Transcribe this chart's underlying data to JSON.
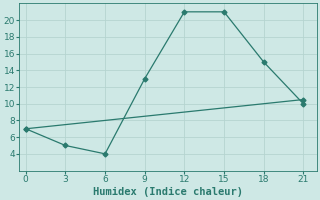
{
  "xlabel": "Humidex (Indice chaleur)",
  "line1_x": [
    0,
    3,
    6,
    9,
    12,
    15,
    18,
    21
  ],
  "line1_y": [
    7,
    5,
    4,
    13,
    21,
    21,
    15,
    10
  ],
  "line2_x": [
    0,
    21
  ],
  "line2_y": [
    7,
    10.5
  ],
  "line_color": "#2a7a6e",
  "bg_color": "#cee8e5",
  "grid_color": "#b5d4d0",
  "xlim": [
    -0.5,
    22
  ],
  "ylim": [
    2,
    22
  ],
  "xticks": [
    0,
    3,
    6,
    9,
    12,
    15,
    18,
    21
  ],
  "yticks": [
    4,
    6,
    8,
    10,
    12,
    14,
    16,
    18,
    20
  ],
  "tick_fontsize": 6.5,
  "label_fontsize": 7.5
}
